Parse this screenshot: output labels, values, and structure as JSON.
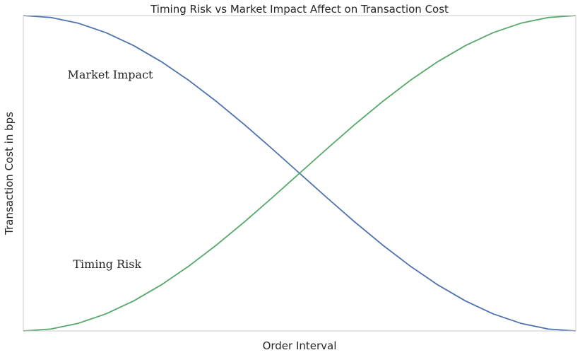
{
  "chart_data": {
    "type": "line",
    "title": "Timing Risk vs Market Impact Affect on Transaction Cost",
    "xlabel": "Order Interval",
    "ylabel": "Transaction Cost in bps",
    "xlim": [
      0,
      1
    ],
    "ylim": [
      0,
      1
    ],
    "grid": false,
    "legend": "none",
    "series": [
      {
        "color": "#4c72b0",
        "x": [
          0,
          0.05,
          0.1,
          0.15,
          0.2,
          0.25,
          0.3,
          0.35,
          0.4,
          0.45,
          0.5,
          0.55,
          0.6,
          0.65,
          0.7,
          0.75,
          0.8,
          0.85,
          0.9,
          0.95,
          1
        ],
        "y": [
          1,
          0.9938,
          0.9755,
          0.9455,
          0.9045,
          0.8536,
          0.7939,
          0.727,
          0.6545,
          0.5782,
          0.5,
          0.4218,
          0.3455,
          0.273,
          0.2061,
          0.1464,
          0.0955,
          0.0545,
          0.0245,
          0.0062,
          0
        ]
      },
      {
        "color": "#55a868",
        "x": [
          0,
          0.05,
          0.1,
          0.15,
          0.2,
          0.25,
          0.3,
          0.35,
          0.4,
          0.45,
          0.5,
          0.55,
          0.6,
          0.65,
          0.7,
          0.75,
          0.8,
          0.85,
          0.9,
          0.95,
          1
        ],
        "y": [
          0,
          0.0062,
          0.0245,
          0.0545,
          0.0955,
          0.1464,
          0.2061,
          0.273,
          0.3455,
          0.4218,
          0.5,
          0.5782,
          0.6545,
          0.727,
          0.7939,
          0.8536,
          0.9045,
          0.9455,
          0.9755,
          0.9938,
          1
        ]
      }
    ],
    "annotations": [
      {
        "text": "Market Impact",
        "x": 0.08,
        "y": 0.8
      },
      {
        "text": "Timing Risk",
        "x": 0.09,
        "y": 0.2
      }
    ]
  }
}
